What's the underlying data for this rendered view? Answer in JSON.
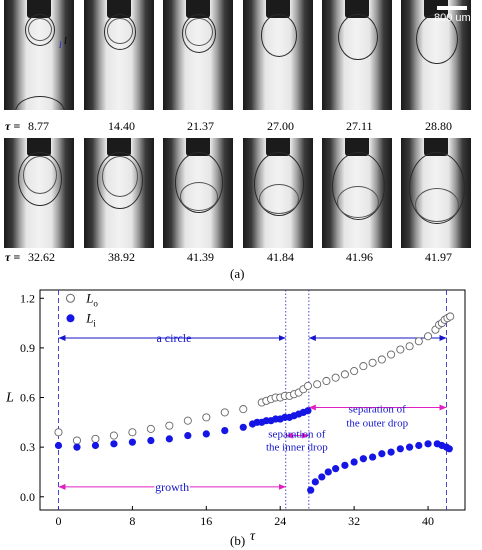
{
  "panel_a": {
    "label": "(a)",
    "tau_prefix": "τ =",
    "scale_text": "800 um",
    "frame_marks": {
      "inner": "l",
      "outer": "l"
    },
    "row1": [
      "8.77",
      "14.40",
      "21.37",
      "27.00",
      "27.11",
      "28.80"
    ],
    "row2": [
      "32.62",
      "38.92",
      "41.39",
      "41.84",
      "41.96",
      "41.97"
    ]
  },
  "panel_b": {
    "label": "(b)"
  },
  "chart_data": {
    "type": "scatter",
    "xlabel": "τ",
    "ylabel": "L",
    "xlim": [
      -2,
      44
    ],
    "ylim": [
      -0.08,
      1.25
    ],
    "xticks": [
      0,
      8,
      16,
      24,
      32,
      40
    ],
    "yticks": [
      0.0,
      0.3,
      0.6,
      0.9,
      1.2
    ],
    "ytick_labels": [
      "0.0",
      "0.3",
      "0.6",
      "0.9",
      "1.2"
    ],
    "legend_position": "top-left",
    "series": [
      {
        "name": "Lo",
        "marker": "open-circle",
        "color": "#666666",
        "points": [
          [
            0,
            0.39
          ],
          [
            2,
            0.34
          ],
          [
            4,
            0.35
          ],
          [
            6,
            0.37
          ],
          [
            8,
            0.39
          ],
          [
            10,
            0.41
          ],
          [
            12,
            0.43
          ],
          [
            14,
            0.46
          ],
          [
            16,
            0.48
          ],
          [
            18,
            0.51
          ],
          [
            20,
            0.53
          ],
          [
            22,
            0.57
          ],
          [
            22.5,
            0.58
          ],
          [
            23,
            0.59
          ],
          [
            23.5,
            0.6
          ],
          [
            24,
            0.6
          ],
          [
            24.5,
            0.61
          ],
          [
            25,
            0.61
          ],
          [
            25.5,
            0.62
          ],
          [
            26,
            0.63
          ],
          [
            26.5,
            0.65
          ],
          [
            27,
            0.67
          ],
          [
            28,
            0.68
          ],
          [
            29,
            0.7
          ],
          [
            30,
            0.72
          ],
          [
            31,
            0.74
          ],
          [
            32,
            0.76
          ],
          [
            33,
            0.79
          ],
          [
            34,
            0.81
          ],
          [
            35,
            0.83
          ],
          [
            36,
            0.86
          ],
          [
            37,
            0.89
          ],
          [
            38,
            0.91
          ],
          [
            39,
            0.94
          ],
          [
            40,
            0.97
          ],
          [
            40.8,
            1.01
          ],
          [
            41.2,
            1.04
          ],
          [
            41.5,
            1.05
          ],
          [
            41.8,
            1.07
          ],
          [
            42.1,
            1.08
          ],
          [
            42.4,
            1.09
          ]
        ]
      },
      {
        "name": "Li",
        "marker": "filled-circle",
        "color": "#1515e6",
        "points": [
          [
            0,
            0.31
          ],
          [
            2,
            0.3
          ],
          [
            4,
            0.31
          ],
          [
            6,
            0.32
          ],
          [
            8,
            0.33
          ],
          [
            10,
            0.34
          ],
          [
            12,
            0.35
          ],
          [
            14,
            0.37
          ],
          [
            16,
            0.38
          ],
          [
            18,
            0.4
          ],
          [
            20,
            0.42
          ],
          [
            21,
            0.44
          ],
          [
            21.5,
            0.45
          ],
          [
            22,
            0.45
          ],
          [
            22.5,
            0.46
          ],
          [
            23,
            0.46
          ],
          [
            23.5,
            0.47
          ],
          [
            24,
            0.47
          ],
          [
            24.5,
            0.48
          ],
          [
            25,
            0.48
          ],
          [
            25.5,
            0.49
          ],
          [
            26,
            0.5
          ],
          [
            26.5,
            0.51
          ],
          [
            27,
            0.52
          ],
          [
            27.3,
            0.04
          ],
          [
            27.8,
            0.09
          ],
          [
            28.5,
            0.12
          ],
          [
            29.2,
            0.15
          ],
          [
            30,
            0.17
          ],
          [
            31,
            0.19
          ],
          [
            32,
            0.21
          ],
          [
            33,
            0.23
          ],
          [
            34,
            0.24
          ],
          [
            35,
            0.26
          ],
          [
            36,
            0.27
          ],
          [
            37,
            0.29
          ],
          [
            38,
            0.3
          ],
          [
            39,
            0.31
          ],
          [
            40,
            0.32
          ],
          [
            41,
            0.32
          ],
          [
            41.5,
            0.31
          ],
          [
            42,
            0.3
          ],
          [
            42.3,
            0.29
          ]
        ]
      }
    ],
    "vlines": [
      {
        "x": 0,
        "style": "dashed",
        "color": "#3030cc"
      },
      {
        "x": 24.6,
        "style": "dotted",
        "color": "#3030cc"
      },
      {
        "x": 27.1,
        "style": "dotted",
        "color": "#3030cc"
      },
      {
        "x": 42.0,
        "style": "dashed",
        "color": "#3030cc"
      }
    ],
    "annotations": [
      {
        "text": "a circle",
        "color": "#1515cc",
        "y": 0.96,
        "arrows": [
          [
            0,
            24.6
          ],
          [
            27.1,
            42.0
          ]
        ]
      },
      {
        "text": "separation of",
        "text2": "the outer drop",
        "color": "#1515cc",
        "arrow_color": "#e020c0",
        "y": 0.54,
        "arrows": [
          [
            27.1,
            42.0
          ]
        ]
      },
      {
        "text": "separation of",
        "text2": "the inner drop",
        "color": "#1515cc",
        "arrow_color": "#e020c0",
        "y": 0.37,
        "arrows": [
          [
            24.6,
            27.1
          ]
        ]
      },
      {
        "text": "growth",
        "color": "#1515cc",
        "arrow_color": "#e020c0",
        "y": 0.06,
        "arrows": [
          [
            0,
            24.6
          ]
        ]
      }
    ]
  }
}
